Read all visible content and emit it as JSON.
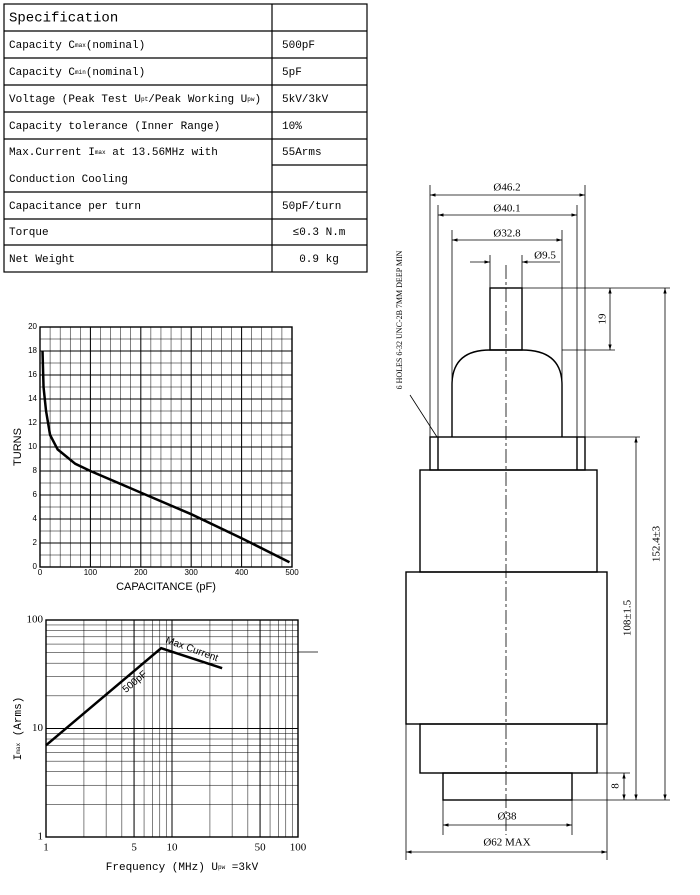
{
  "table": {
    "title": "Specification",
    "rows": [
      {
        "label": [
          "Capacity C",
          "max",
          "(nominal)"
        ],
        "value": "500pF"
      },
      {
        "label": [
          "Capacity C",
          "min",
          "(nominal)"
        ],
        "value": "5pF"
      },
      {
        "label": [
          "Voltage (Peak Test U",
          "pt",
          "/Peak Working U",
          "pw",
          ")"
        ],
        "value": "5kV/3kV"
      },
      {
        "label": [
          "Capacity tolerance (Inner Range)"
        ],
        "value": "10%"
      },
      {
        "label": [
          "Max.Current I",
          "max",
          " at 13.56MHz with"
        ],
        "value": "55Arms"
      },
      {
        "label": [
          "Conduction Cooling"
        ]
      },
      {
        "label": [
          "Capacitance per turn"
        ],
        "value": "50pF/turn"
      },
      {
        "label": [
          "Torque"
        ],
        "value": "≤0.3 N.m"
      },
      {
        "label": [
          "Net Weight"
        ],
        "value": "0.9 kg"
      }
    ]
  },
  "chart_data": [
    {
      "type": "line",
      "xlabel": "CAPACITANCE (pF)",
      "ylabel": "TURNS",
      "xlim": [
        0,
        500
      ],
      "ylim": [
        0,
        20
      ],
      "xticks": [
        0,
        100,
        200,
        300,
        400,
        500
      ],
      "yticks": [
        0,
        2,
        4,
        6,
        8,
        10,
        12,
        14,
        16,
        18,
        20
      ],
      "grid": true,
      "series": [
        {
          "color": "#000000",
          "x": [
            5,
            7,
            12,
            20,
            35,
            70,
            100,
            200,
            300,
            400,
            495
          ],
          "values": [
            18,
            15,
            13,
            11,
            9.8,
            8.6,
            8,
            6.2,
            4.4,
            2.4,
            0.4
          ]
        }
      ]
    },
    {
      "type": "line",
      "log": true,
      "xlabel": [
        "Frequency (MHz) U",
        "pw",
        " =3kV"
      ],
      "ylabel": [
        "I",
        "max",
        " (Arms)"
      ],
      "xlim": [
        1,
        100
      ],
      "ylim": [
        1,
        100
      ],
      "xticks": [
        1,
        5,
        10,
        50,
        100
      ],
      "yticks": [
        1,
        10,
        100
      ],
      "grid": true,
      "annotations": [
        "500pF",
        "Max Current"
      ],
      "series": [
        {
          "color": "#000000",
          "x": [
            1,
            8.2,
            25
          ],
          "values": [
            7,
            55,
            36
          ]
        }
      ]
    }
  ],
  "drawing": {
    "hole_spec": "6 HOLES 6-32 UNC-2B 7MM DEEP MIN",
    "dimensions": [
      "Ø46.2",
      "Ø40.1",
      "Ø32.8",
      "Ø9.5",
      "19",
      "152.4±3",
      "108±1.5",
      "8",
      "Ø38",
      "Ø62 MAX"
    ]
  }
}
